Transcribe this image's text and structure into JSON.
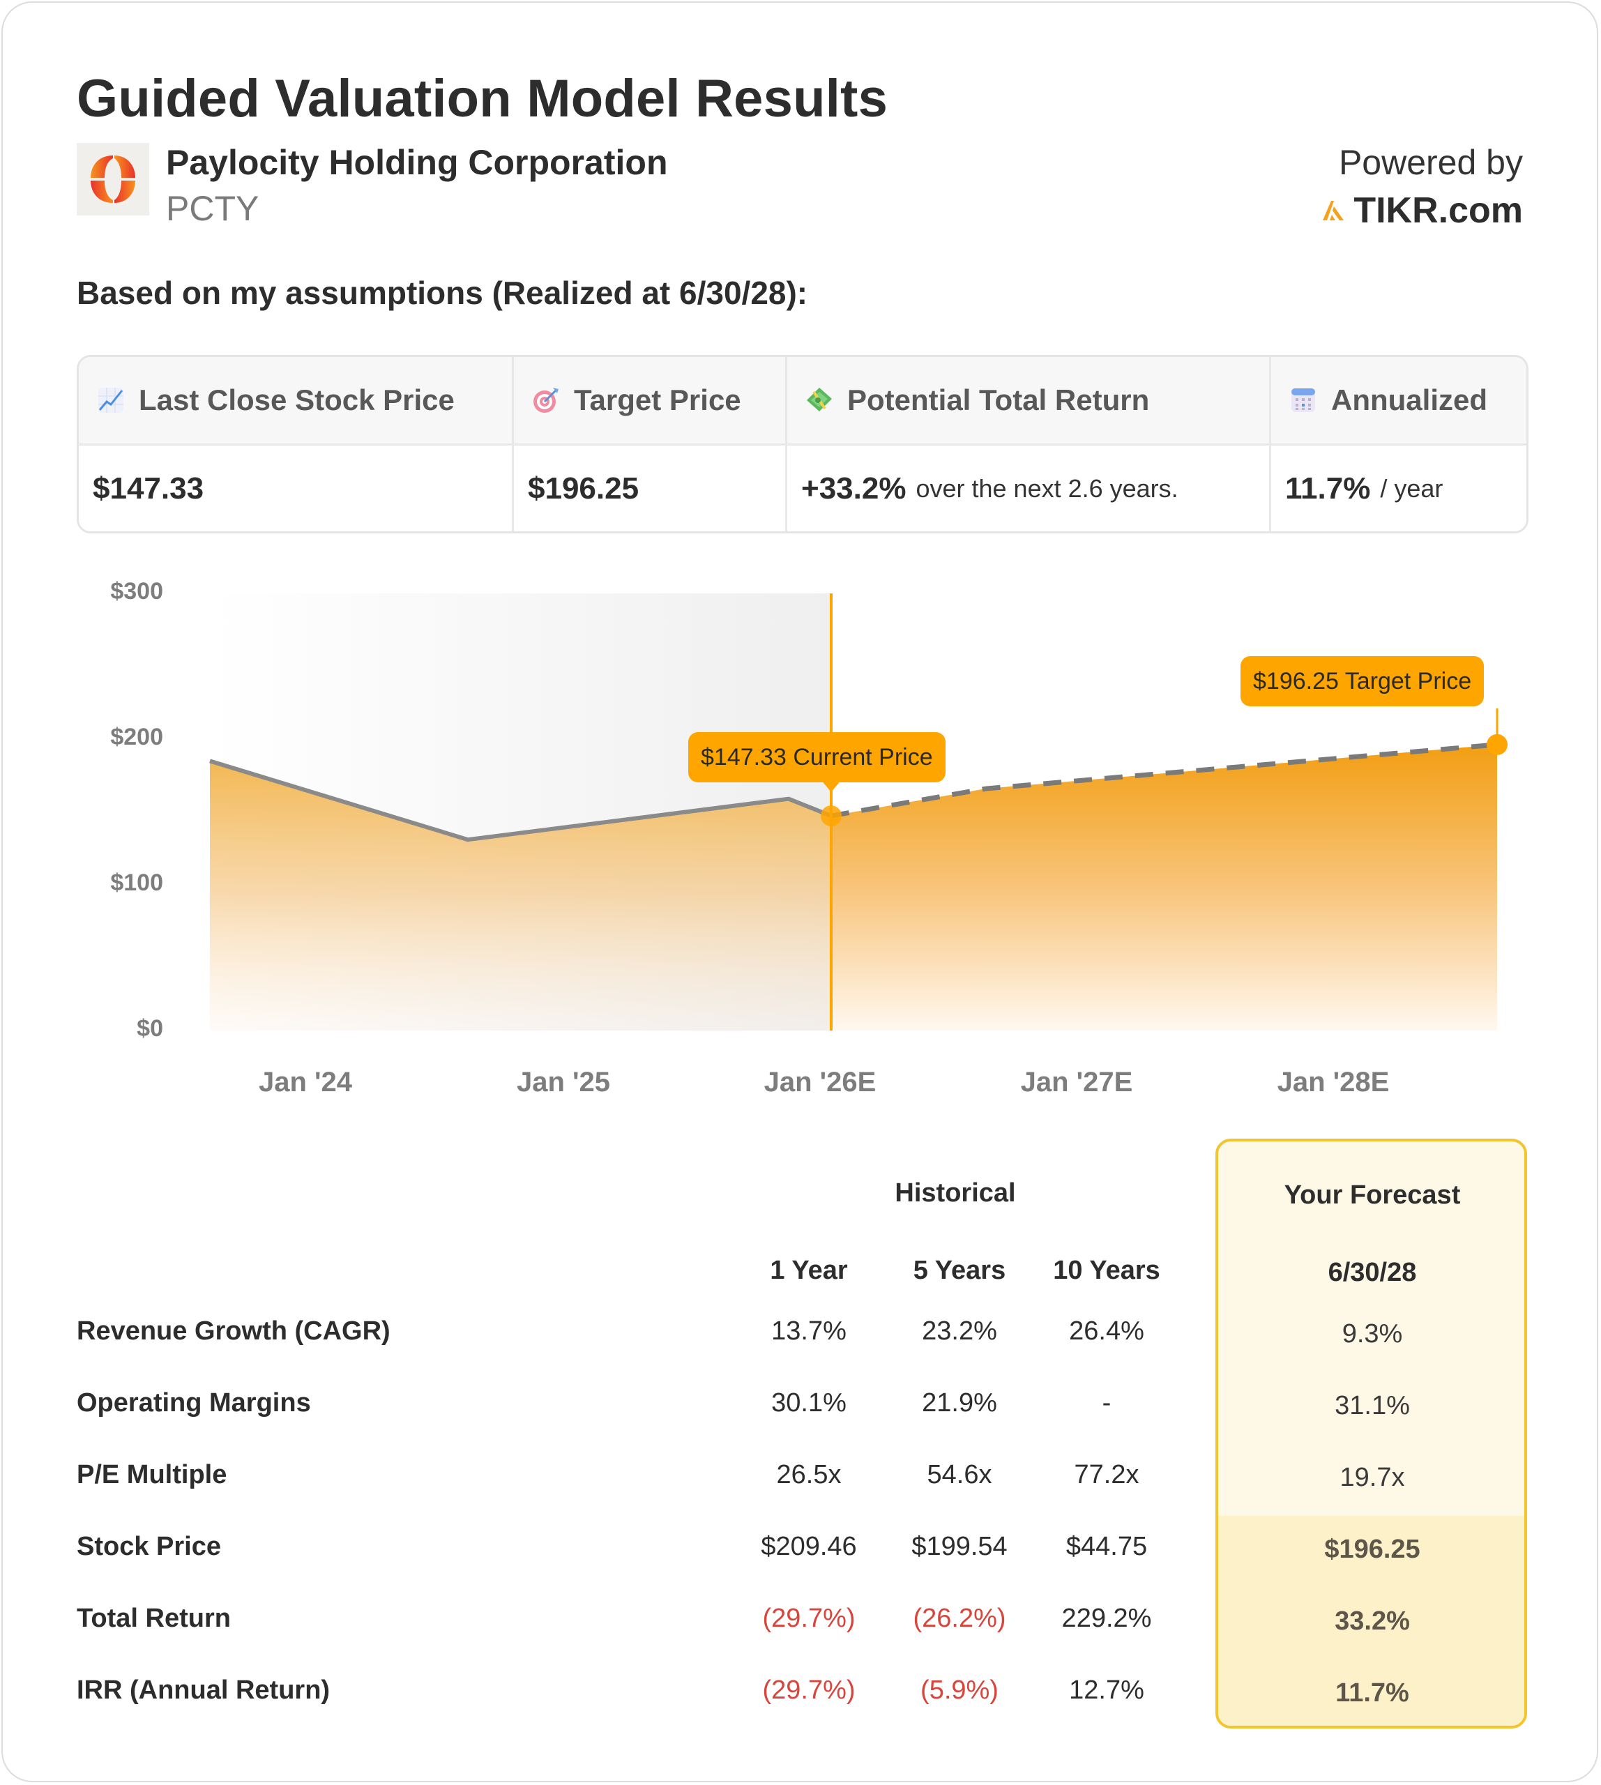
{
  "header": {
    "title": "Guided Valuation Model Results",
    "company_name": "Paylocity Holding Corporation",
    "ticker": "PCTY",
    "powered_by": "Powered by",
    "brand": "TIKR.com",
    "assumptions_line": "Based on my assumptions (Realized at 6/30/28):"
  },
  "summary": {
    "columns": [
      {
        "icon": "chart-increasing-icon",
        "label": "Last Close Stock Price",
        "value": "$147.33",
        "suffix": ""
      },
      {
        "icon": "target-dart-icon",
        "label": "Target Price",
        "value": "$196.25",
        "suffix": ""
      },
      {
        "icon": "money-with-wings-icon",
        "label": "Potential Total Return",
        "value": "+33.2%",
        "suffix": "over the next 2.6 years."
      },
      {
        "icon": "calendar-icon",
        "label": "Annualized",
        "value": "11.7%",
        "suffix": "/ year"
      }
    ]
  },
  "colors": {
    "accent": "#ffa500",
    "forecast_border": "#f2c52f",
    "forecast_bg": "#fef9e6",
    "forecast_bg_emphasis": "#fcf1c9",
    "negative": "#d9443b",
    "line_historical": "#8a8a8a"
  },
  "chart_data": {
    "type": "area",
    "title": "",
    "xlabel": "",
    "ylabel": "",
    "ylim": [
      0,
      300
    ],
    "y_ticks": [
      "$300",
      "$200",
      "$100",
      "$0"
    ],
    "x_ticks": [
      "Jan '24",
      "Jan '25",
      "Jan '26E",
      "Jan '27E",
      "Jan '28E"
    ],
    "grid": false,
    "legend": null,
    "series": [
      {
        "name": "Historical",
        "style": "solid gray line, pale orange gradient fill",
        "points": [
          {
            "x": "Jul '23",
            "y": 185
          },
          {
            "x": "Jul '24",
            "y": 131
          },
          {
            "x": "Sep '25",
            "y": 159
          },
          {
            "x": "Dec '25",
            "y": 147.33
          }
        ]
      },
      {
        "name": "Forecast",
        "style": "dashed gray line, orange gradient fill",
        "points": [
          {
            "x": "Dec '25",
            "y": 147.33
          },
          {
            "x": "Jun '26",
            "y": 166
          },
          {
            "x": "Jun '28",
            "y": 196.25
          }
        ]
      }
    ],
    "annotations": [
      {
        "label": "$147.33 Current Price",
        "x": "Dec '25",
        "y": 147.33
      },
      {
        "label": "$196.25 Target Price",
        "x": "Jun '28",
        "y": 196.25
      }
    ],
    "current_marker_x": "Dec '25"
  },
  "metrics": {
    "historical_header": "Historical",
    "forecast_header": "Your Forecast",
    "columns": [
      "1 Year",
      "5 Years",
      "10 Years"
    ],
    "forecast_column": "6/30/28",
    "rows": [
      {
        "label": "Revenue Growth (CAGR)",
        "values": [
          "13.7%",
          "23.2%",
          "26.4%"
        ],
        "negative": [
          false,
          false,
          false
        ],
        "forecast": "9.3%"
      },
      {
        "label": "Operating Margins",
        "values": [
          "30.1%",
          "21.9%",
          "-"
        ],
        "negative": [
          false,
          false,
          false
        ],
        "forecast": "31.1%"
      },
      {
        "label": "P/E Multiple",
        "values": [
          "26.5x",
          "54.6x",
          "77.2x"
        ],
        "negative": [
          false,
          false,
          false
        ],
        "forecast": "19.7x"
      },
      {
        "label": "Stock Price",
        "values": [
          "$209.46",
          "$199.54",
          "$44.75"
        ],
        "negative": [
          false,
          false,
          false
        ],
        "forecast": "$196.25"
      },
      {
        "label": "Total Return",
        "values": [
          "(29.7%)",
          "(26.2%)",
          "229.2%"
        ],
        "negative": [
          true,
          true,
          false
        ],
        "forecast": "33.2%"
      },
      {
        "label": "IRR (Annual Return)",
        "values": [
          "(29.7%)",
          "(5.9%)",
          "12.7%"
        ],
        "negative": [
          true,
          true,
          false
        ],
        "forecast": "11.7%"
      }
    ]
  }
}
